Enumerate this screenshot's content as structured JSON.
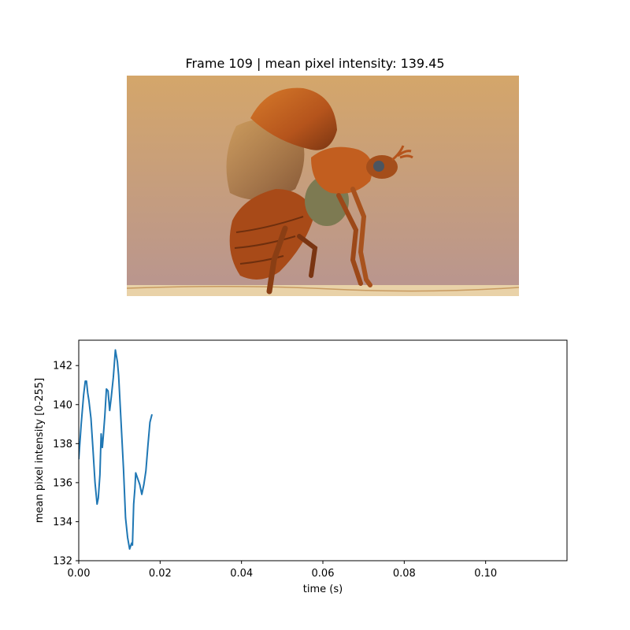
{
  "figure": {
    "frame_title": "Frame 109 | mean pixel intensity: 139.45",
    "image_subject": "beetle-taking-flight-photo"
  },
  "colors": {
    "line": "#1f77b4",
    "bg_top": "#d4a66a",
    "bg_bottom": "#b89590",
    "beetle_shell": "#b5541c",
    "beetle_dark": "#5a2a0e"
  },
  "chart_data": {
    "type": "line",
    "title": "",
    "xlabel": "time (s)",
    "ylabel": "mean pixel intensity [0-255]",
    "xlim": [
      0,
      0.12
    ],
    "ylim": [
      132,
      143.3
    ],
    "xticks": [
      0,
      0.02,
      0.04,
      0.06,
      0.08,
      0.1
    ],
    "xtick_labels": [
      "0.00",
      "0.02",
      "0.04",
      "0.06",
      "0.08",
      "0.10"
    ],
    "yticks": [
      132,
      134,
      136,
      138,
      140,
      142
    ],
    "ytick_labels": [
      "132",
      "134",
      "136",
      "138",
      "140",
      "142"
    ],
    "grid": false,
    "legend": "none",
    "series": [
      {
        "x": [
          0.0,
          0.0006,
          0.0012,
          0.0016,
          0.0019,
          0.0022,
          0.0025,
          0.003,
          0.0035,
          0.004,
          0.0045,
          0.0048,
          0.0052,
          0.0055,
          0.0058,
          0.006,
          0.0064,
          0.0068,
          0.0072,
          0.0076,
          0.008,
          0.0085,
          0.009,
          0.0095,
          0.0098,
          0.0102,
          0.0106,
          0.011,
          0.0115,
          0.012,
          0.0125,
          0.013,
          0.0132,
          0.0135,
          0.0138,
          0.014,
          0.0145,
          0.015,
          0.0155,
          0.016,
          0.0165,
          0.017,
          0.0175,
          0.018
        ],
        "y": [
          137.2,
          139.0,
          140.5,
          141.2,
          141.2,
          140.6,
          140.2,
          139.3,
          137.7,
          136.0,
          134.9,
          135.2,
          136.4,
          138.5,
          137.8,
          138.3,
          139.4,
          140.8,
          140.7,
          139.7,
          140.4,
          141.4,
          142.8,
          142.2,
          141.5,
          139.9,
          138.3,
          136.7,
          134.2,
          133.2,
          132.6,
          132.9,
          132.8,
          134.9,
          135.7,
          136.5,
          136.2,
          135.9,
          135.4,
          135.9,
          136.6,
          137.9,
          139.1,
          139.5
        ]
      }
    ]
  }
}
